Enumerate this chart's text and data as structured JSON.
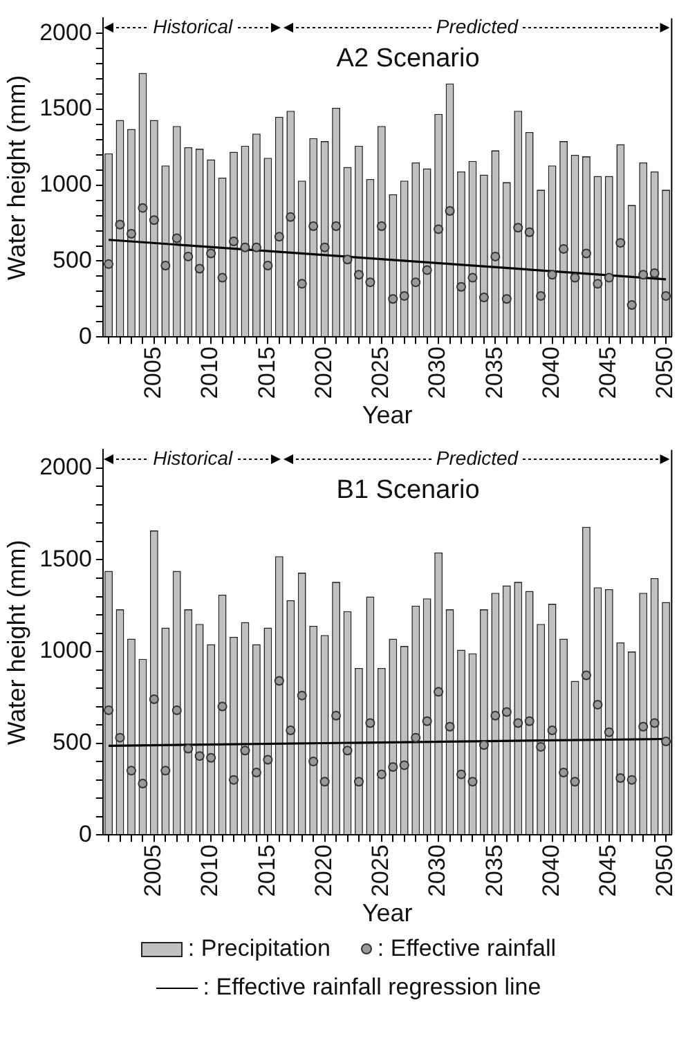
{
  "chart_data": [
    {
      "type": "bar",
      "title": "A2 Scenario",
      "xlabel": "Year",
      "ylabel": "Water height (mm)",
      "categories": [
        null,
        null,
        null,
        null,
        "2005",
        null,
        null,
        null,
        null,
        "2010",
        null,
        null,
        null,
        null,
        "2015",
        null,
        null,
        null,
        null,
        "2020",
        null,
        null,
        null,
        null,
        "2025",
        null,
        null,
        null,
        null,
        "2030",
        null,
        null,
        null,
        null,
        "2035",
        null,
        null,
        null,
        null,
        "2040",
        null,
        null,
        null,
        null,
        "2045",
        null,
        null,
        null,
        null,
        "2050"
      ],
      "series": [
        {
          "color": "#c0c0c0",
          "values": [
            1210,
            1430,
            1370,
            1740,
            1430,
            1130,
            1390,
            1250,
            1240,
            1170,
            1050,
            1220,
            1260,
            1340,
            1180,
            1450,
            1490,
            1030,
            1310,
            1290,
            1510,
            1120,
            1260,
            1040,
            1390,
            940,
            1030,
            1150,
            1110,
            1470,
            1670,
            1090,
            1160,
            1070,
            1230,
            1020,
            1490,
            1350,
            970,
            1130,
            1290,
            1200,
            1190,
            1060,
            1060,
            1270,
            870,
            1150,
            1090,
            970
          ]
        },
        {
          "type": "scatter",
          "marker": "circle",
          "color": "#999999",
          "values": [
            480,
            740,
            680,
            850,
            770,
            470,
            650,
            530,
            450,
            550,
            390,
            630,
            590,
            590,
            470,
            660,
            790,
            350,
            730,
            590,
            730,
            510,
            410,
            360,
            730,
            250,
            270,
            360,
            440,
            710,
            830,
            330,
            390,
            260,
            530,
            250,
            720,
            690,
            270,
            410,
            580,
            390,
            550,
            350,
            390,
            620,
            210,
            410,
            420,
            270
          ]
        },
        {
          "type": "line",
          "color": "#000000",
          "values": [
            640,
            null,
            null,
            null,
            null,
            null,
            null,
            null,
            null,
            null,
            null,
            null,
            null,
            null,
            null,
            null,
            null,
            null,
            null,
            null,
            null,
            null,
            null,
            null,
            null,
            null,
            null,
            null,
            null,
            null,
            null,
            null,
            null,
            null,
            null,
            null,
            null,
            null,
            null,
            null,
            null,
            null,
            null,
            null,
            null,
            null,
            null,
            null,
            null,
            380
          ]
        }
      ],
      "ylim": [
        0,
        2100
      ],
      "yticks": [
        0,
        {
          "value": 100,
          "label": null
        },
        {
          "value": 200,
          "label": null
        },
        {
          "value": 300,
          "label": null
        },
        {
          "value": 400,
          "label": null
        },
        500,
        {
          "value": 600,
          "label": null
        },
        {
          "value": 700,
          "label": null
        },
        {
          "value": 800,
          "label": null
        },
        {
          "value": 900,
          "label": null
        },
        1000,
        {
          "value": 1100,
          "label": null
        },
        {
          "value": 1200,
          "label": null
        },
        {
          "value": 1300,
          "label": null
        },
        {
          "value": 1400,
          "label": null
        },
        1500,
        {
          "value": 1600,
          "label": null
        },
        {
          "value": 1700,
          "label": null
        },
        {
          "value": 1800,
          "label": null
        },
        {
          "value": 1900,
          "label": null
        },
        2000
      ],
      "annotations": [
        "Historical",
        "Predicted"
      ],
      "grid": false
    },
    {
      "type": "bar",
      "title": "B1 Scenario",
      "xlabel": "Year",
      "ylabel": "Water height (mm)",
      "categories": [
        null,
        null,
        null,
        null,
        "2005",
        null,
        null,
        null,
        null,
        "2010",
        null,
        null,
        null,
        null,
        "2015",
        null,
        null,
        null,
        null,
        "2020",
        null,
        null,
        null,
        null,
        "2025",
        null,
        null,
        null,
        null,
        "2030",
        null,
        null,
        null,
        null,
        "2035",
        null,
        null,
        null,
        null,
        "2040",
        null,
        null,
        null,
        null,
        "2045",
        null,
        null,
        null,
        null,
        "2050"
      ],
      "series": [
        {
          "name": ": Precipitation",
          "color": "#c0c0c0",
          "values": [
            1440,
            1230,
            1070,
            960,
            1660,
            1130,
            1440,
            1230,
            1150,
            1040,
            1310,
            1080,
            1160,
            1040,
            1130,
            1520,
            1280,
            1430,
            1140,
            1090,
            1380,
            1220,
            910,
            1300,
            910,
            1070,
            1030,
            1250,
            1290,
            1540,
            1230,
            1010,
            990,
            1230,
            1320,
            1360,
            1380,
            1330,
            1150,
            1260,
            1070,
            840,
            1680,
            1350,
            1340,
            1050,
            1000,
            1320,
            1400,
            1270
          ]
        },
        {
          "type": "scatter",
          "marker": "circle",
          "name": ": Effective rainfall",
          "color": "#999999",
          "values": [
            680,
            530,
            350,
            280,
            740,
            350,
            680,
            470,
            430,
            420,
            700,
            300,
            460,
            340,
            410,
            840,
            570,
            760,
            400,
            290,
            650,
            460,
            290,
            610,
            330,
            370,
            380,
            530,
            620,
            780,
            590,
            330,
            290,
            490,
            650,
            670,
            610,
            620,
            480,
            570,
            340,
            290,
            870,
            710,
            560,
            310,
            300,
            590,
            610,
            510
          ]
        },
        {
          "type": "line",
          "name": ": Effective rainfall regression line",
          "color": "#000000",
          "values": [
            486,
            null,
            null,
            null,
            null,
            null,
            null,
            null,
            null,
            null,
            null,
            null,
            null,
            null,
            null,
            null,
            null,
            null,
            null,
            null,
            null,
            null,
            null,
            null,
            null,
            null,
            null,
            null,
            null,
            null,
            null,
            null,
            null,
            null,
            null,
            null,
            null,
            null,
            null,
            null,
            null,
            null,
            null,
            null,
            null,
            null,
            null,
            null,
            null,
            523
          ]
        }
      ],
      "ylim": [
        0,
        2100
      ],
      "yticks": [
        0,
        {
          "value": 100,
          "label": null
        },
        {
          "value": 200,
          "label": null
        },
        {
          "value": 300,
          "label": null
        },
        {
          "value": 400,
          "label": null
        },
        500,
        {
          "value": 600,
          "label": null
        },
        {
          "value": 700,
          "label": null
        },
        {
          "value": 800,
          "label": null
        },
        {
          "value": 900,
          "label": null
        },
        1000,
        {
          "value": 1100,
          "label": null
        },
        {
          "value": 1200,
          "label": null
        },
        {
          "value": 1300,
          "label": null
        },
        {
          "value": 1400,
          "label": null
        },
        1500,
        {
          "value": 1600,
          "label": null
        },
        {
          "value": 1700,
          "label": null
        },
        {
          "value": 1800,
          "label": null
        },
        {
          "value": 1900,
          "label": null
        },
        2000
      ],
      "annotations": [
        "Historical",
        "Predicted"
      ],
      "grid": false,
      "legend": "bottom"
    }
  ]
}
